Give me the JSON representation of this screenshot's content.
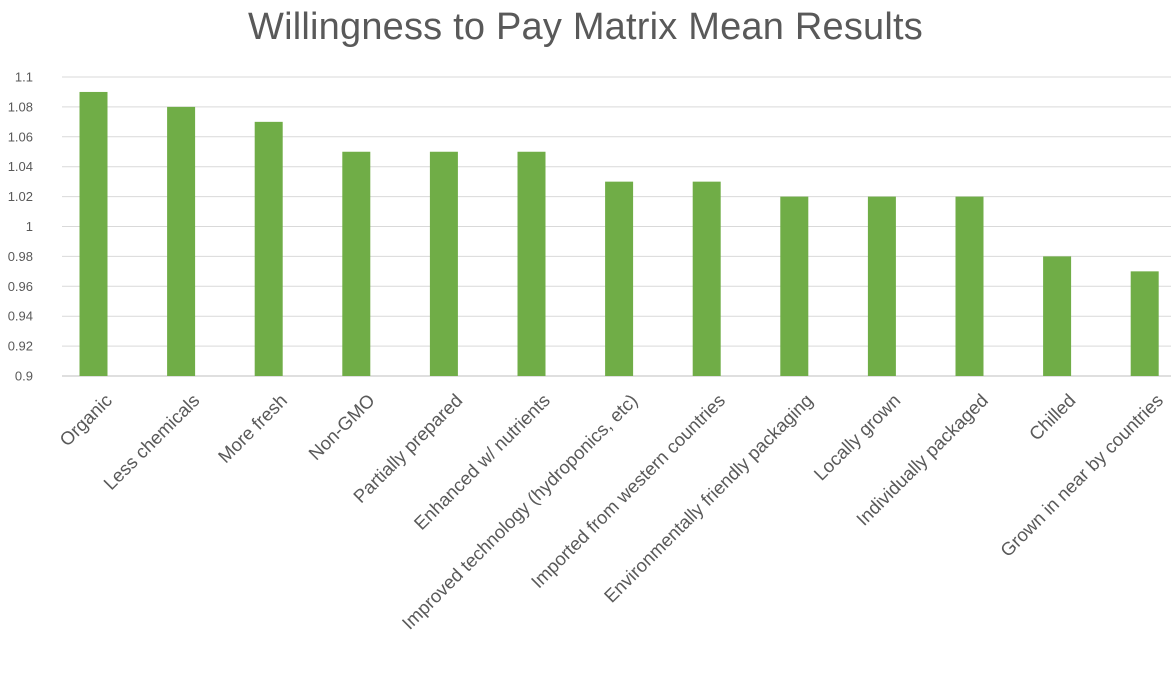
{
  "chart_data": {
    "type": "bar",
    "title": "Willingness to Pay Matrix Mean Results",
    "xlabel": "",
    "ylabel": "",
    "categories": [
      "Organic",
      "Less chemicals",
      "More fresh",
      "Non-GMO",
      "Partially prepared",
      "Enhanced w/ nutrients",
      "Improved technology (hydroponics, etc)",
      "Imported from western countries",
      "Environmentally friendly packaging",
      "Locally grown",
      "Individually packaged",
      "Chilled",
      "Grown in near by countries"
    ],
    "values": [
      1.09,
      1.08,
      1.07,
      1.05,
      1.05,
      1.05,
      1.03,
      1.03,
      1.02,
      1.02,
      1.02,
      0.98,
      0.97
    ],
    "ylim": [
      0.9,
      1.1
    ],
    "yticks": [
      "0.9",
      "0.92",
      "0.94",
      "0.96",
      "0.98",
      "1",
      "1.02",
      "1.04",
      "1.06",
      "1.08",
      "1.1"
    ],
    "grid": true,
    "legend": "none",
    "bar_color": "#70ad47",
    "grid_color": "#d9d9d9",
    "text_color": "#595959"
  }
}
